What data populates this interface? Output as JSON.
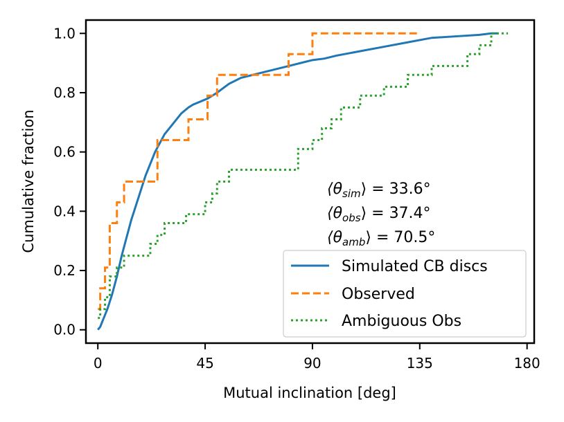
{
  "chart_data": {
    "type": "line",
    "title": "",
    "xlabel": "Mutual inclination [deg]",
    "ylabel": "Cumulative fraction",
    "xlim": [
      -5,
      183
    ],
    "ylim": [
      -0.045,
      1.045
    ],
    "xticks": [
      0,
      45,
      90,
      135,
      180
    ],
    "yticks": [
      0.0,
      0.2,
      0.4,
      0.6,
      0.8,
      1.0
    ],
    "xtick_labels": [
      "0",
      "45",
      "90",
      "135",
      "180"
    ],
    "ytick_labels": [
      "0.0",
      "0.2",
      "0.4",
      "0.6",
      "0.8",
      "1.0"
    ],
    "legend_position": "lower-right",
    "annotations": {
      "sim": {
        "prefix": "⟨θ",
        "sub": "sim",
        "suffix": "⟩ = 33.6°"
      },
      "obs": {
        "prefix": "⟨θ",
        "sub": "obs",
        "suffix": "⟩ = 37.4°"
      },
      "amb": {
        "prefix": "⟨θ",
        "sub": "amb",
        "suffix": "⟩ = 70.5°"
      }
    },
    "series": [
      {
        "name": "Simulated CB discs",
        "style": "solid",
        "color": "#1f77b4",
        "x": [
          0,
          1,
          2,
          4,
          6,
          8,
          10,
          12,
          14,
          16,
          18,
          20,
          22,
          24,
          26,
          28,
          30,
          32,
          35,
          38,
          40,
          43,
          46,
          50,
          55,
          60,
          65,
          70,
          75,
          80,
          85,
          90,
          95,
          100,
          110,
          120,
          130,
          140,
          150,
          160,
          165,
          168
        ],
        "values": [
          0.0,
          0.01,
          0.03,
          0.07,
          0.12,
          0.18,
          0.25,
          0.31,
          0.37,
          0.42,
          0.47,
          0.52,
          0.56,
          0.6,
          0.63,
          0.66,
          0.68,
          0.7,
          0.73,
          0.75,
          0.76,
          0.77,
          0.78,
          0.8,
          0.83,
          0.85,
          0.86,
          0.87,
          0.88,
          0.89,
          0.9,
          0.91,
          0.915,
          0.925,
          0.94,
          0.955,
          0.97,
          0.985,
          0.99,
          0.995,
          1.0,
          1.0
        ]
      },
      {
        "name": "Observed",
        "style": "dashed",
        "color": "#ff7f0e",
        "x": [
          0,
          1,
          3,
          5,
          8,
          11,
          13,
          18,
          25,
          28,
          38,
          46,
          50,
          80,
          90,
          134
        ],
        "values": [
          0.07,
          0.14,
          0.21,
          0.36,
          0.43,
          0.5,
          0.5,
          0.5,
          0.64,
          0.64,
          0.71,
          0.79,
          0.86,
          0.93,
          1.0,
          1.0
        ]
      },
      {
        "name": "Ambiguous Obs",
        "style": "dotted",
        "color": "#2ca02c",
        "x": [
          0,
          1,
          3,
          5,
          8,
          11,
          15,
          19,
          22,
          25,
          28,
          33,
          37,
          42,
          45,
          48,
          50,
          53,
          55,
          62,
          66,
          72,
          78,
          80,
          84,
          86,
          90,
          94,
          98,
          102,
          110,
          115,
          120,
          125,
          130,
          135,
          140,
          145,
          150,
          155,
          158,
          160,
          162,
          165,
          168,
          172
        ],
        "values": [
          0.04,
          0.07,
          0.11,
          0.18,
          0.21,
          0.25,
          0.25,
          0.25,
          0.29,
          0.32,
          0.36,
          0.36,
          0.39,
          0.39,
          0.43,
          0.46,
          0.5,
          0.5,
          0.54,
          0.54,
          0.54,
          0.54,
          0.54,
          0.54,
          0.61,
          0.61,
          0.64,
          0.68,
          0.71,
          0.75,
          0.79,
          0.79,
          0.82,
          0.82,
          0.86,
          0.86,
          0.89,
          0.89,
          0.89,
          0.93,
          0.93,
          0.96,
          0.96,
          1.0,
          1.0,
          1.0
        ]
      }
    ]
  }
}
